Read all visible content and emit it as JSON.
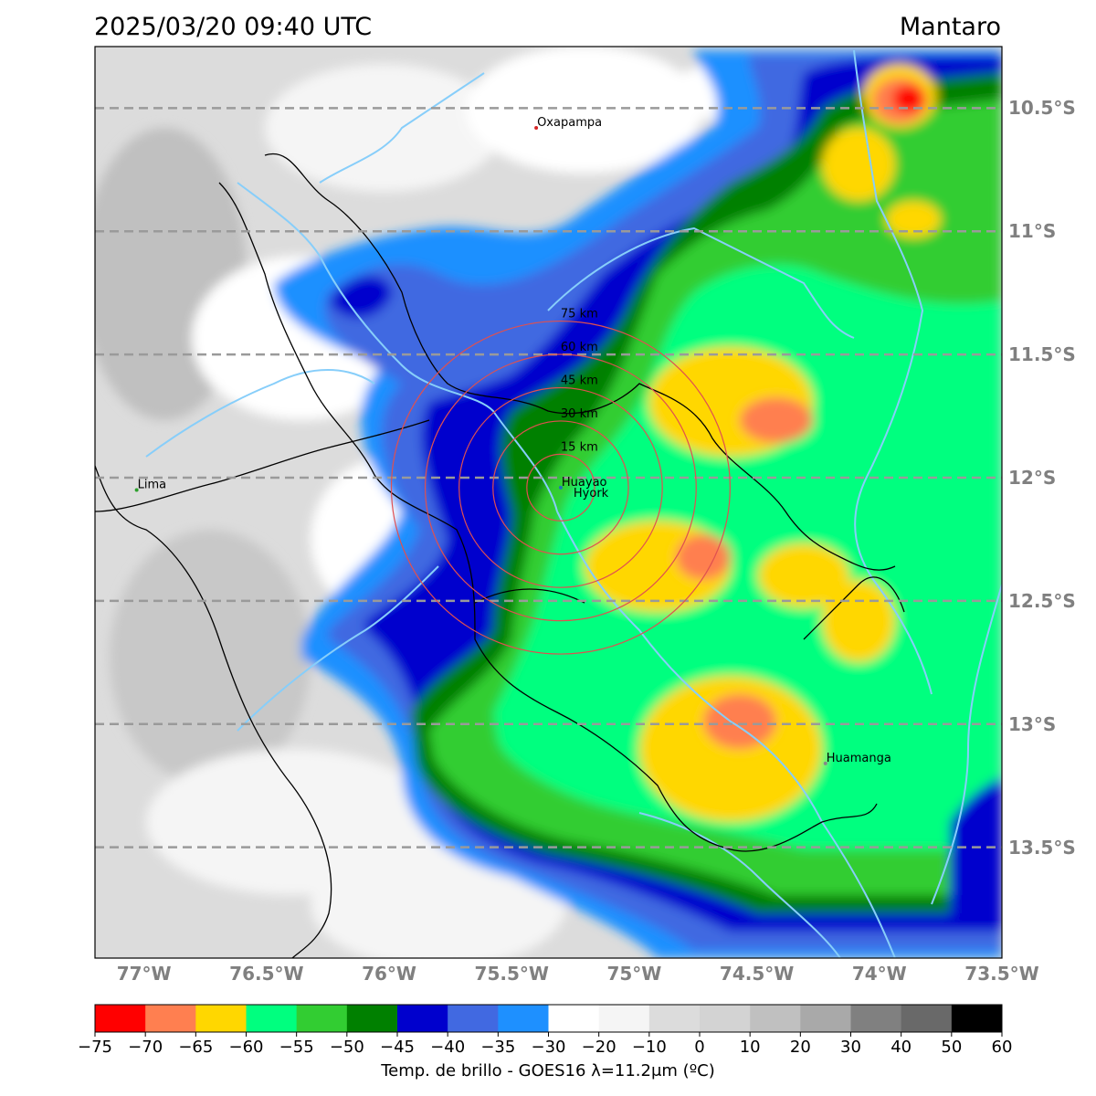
{
  "header": {
    "datetime": "2025/03/20 09:40 UTC",
    "region": "Mantaro"
  },
  "map": {
    "lon_range": [
      -77.2,
      -73.5
    ],
    "lat_range": [
      -13.95,
      -10.25
    ],
    "lat_ticks": [
      {
        "value": -10.5,
        "label": "10.5°S"
      },
      {
        "value": -11.0,
        "label": "11°S"
      },
      {
        "value": -11.5,
        "label": "11.5°S"
      },
      {
        "value": -12.0,
        "label": "12°S"
      },
      {
        "value": -12.5,
        "label": "12.5°S"
      },
      {
        "value": -13.0,
        "label": "13°S"
      },
      {
        "value": -13.5,
        "label": "13.5°S"
      }
    ],
    "lon_ticks": [
      {
        "value": -77.0,
        "label": "77°W"
      },
      {
        "value": -76.5,
        "label": "76.5°W"
      },
      {
        "value": -76.0,
        "label": "76°W"
      },
      {
        "value": -75.5,
        "label": "75.5°W"
      },
      {
        "value": -75.0,
        "label": "75°W"
      },
      {
        "value": -74.5,
        "label": "74.5°W"
      },
      {
        "value": -74.0,
        "label": "74°W"
      },
      {
        "value": -73.5,
        "label": "73.5°W"
      }
    ],
    "cities": [
      {
        "name": "Oxapampa",
        "lon": -75.4,
        "lat": -10.58,
        "color": "#d62728"
      },
      {
        "name": "Lima",
        "lon": -77.03,
        "lat": -12.05,
        "color": "#2ca02c"
      },
      {
        "name": "Huayao",
        "lon": -75.3,
        "lat": -12.04,
        "color": "#1f77b4"
      },
      {
        "name": "Huamanga",
        "lon": -74.22,
        "lat": -13.16,
        "color": "#888888"
      }
    ],
    "radar": {
      "center_lon": -75.3,
      "center_lat": -12.04,
      "station_label": "Hyork",
      "ring_labels": [
        "15 km",
        "30 km",
        "45 km",
        "60 km",
        "75 km"
      ],
      "ring_km": [
        15,
        30,
        45,
        60,
        75
      ],
      "ring_color": "#e05050"
    },
    "colors": {
      "grid": "#9a9a9a",
      "rivers": "#87cefa",
      "borders": "#000000"
    }
  },
  "colorbar": {
    "label": "Temp. de brillo - GOES16 λ=11.2μm (ºC)",
    "colors": [
      "#ff0000",
      "#ff7f50",
      "#ffd700",
      "#00ff7f",
      "#32cd32",
      "#008000",
      "#0000cd",
      "#4169e1",
      "#1e90ff",
      "#ffffff",
      "#f5f5f5",
      "#dcdcdc",
      "#d3d3d3",
      "#c0c0c0",
      "#a9a9a9",
      "#808080",
      "#696969",
      "#000000"
    ],
    "bounds": [
      -75,
      -70,
      -65,
      -60,
      -55,
      -50,
      -45,
      -40,
      -35,
      -30,
      -20,
      -10,
      0,
      10,
      20,
      30,
      40,
      50,
      60
    ],
    "tick_labels": [
      "−75",
      "−70",
      "−65",
      "−60",
      "−55",
      "−50",
      "−45",
      "−40",
      "−35",
      "−30",
      "−20",
      "−10",
      "0",
      "10",
      "20",
      "30",
      "40",
      "50",
      "60"
    ]
  }
}
